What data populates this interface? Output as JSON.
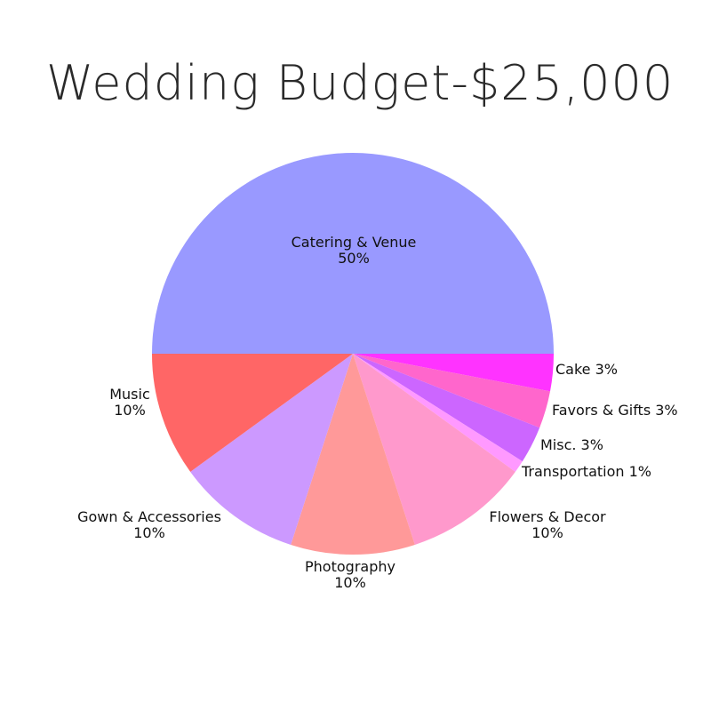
{
  "chart_data": {
    "type": "pie",
    "title": "Wedding Budget-$25,000",
    "slices": [
      {
        "label": "Catering & Venue",
        "value": 50,
        "display": "50%",
        "color": "#9999ff"
      },
      {
        "label": "Cake",
        "value": 3,
        "display": "3%",
        "color": "#ff33ff"
      },
      {
        "label": "Favors & Gifts",
        "value": 3,
        "display": "3%",
        "color": "#ff66cc"
      },
      {
        "label": "Misc.",
        "value": 3,
        "display": "3%",
        "color": "#cc66ff"
      },
      {
        "label": "Transportation",
        "value": 1,
        "display": "1%",
        "color": "#ff99ff"
      },
      {
        "label": "Flowers & Decor",
        "value": 10,
        "display": "10%",
        "color": "#ff99cc"
      },
      {
        "label": "Photography",
        "value": 10,
        "display": "10%",
        "color": "#ff9999"
      },
      {
        "label": "Gown & Accessories",
        "value": 10,
        "display": "10%",
        "color": "#cc99ff"
      },
      {
        "label": "Music",
        "value": 10,
        "display": "10%",
        "color": "#ff6666"
      }
    ]
  }
}
